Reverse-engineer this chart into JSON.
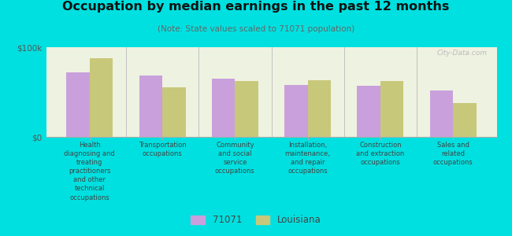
{
  "title": "Occupation by median earnings in the past 12 months",
  "subtitle": "(Note: State values scaled to 71071 population)",
  "categories": [
    "Health\ndiagnosing and\ntreating\npractitioners\nand other\ntechnical\noccupations",
    "Transportation\noccupations",
    "Community\nand social\nservice\noccupations",
    "Installation,\nmaintenance,\nand repair\noccupations",
    "Construction\nand extraction\noccupations",
    "Sales and\nrelated\noccupations"
  ],
  "values_71071": [
    72000,
    68000,
    65000,
    58000,
    57000,
    52000
  ],
  "values_louisiana": [
    88000,
    55000,
    62000,
    63000,
    62000,
    38000
  ],
  "color_71071": "#c9a0dc",
  "color_louisiana": "#c8c87a",
  "background_color": "#00e0e0",
  "plot_bg": "#eef2e0",
  "ylim": [
    0,
    100000
  ],
  "ytick_labels": [
    "$0",
    "$100k"
  ],
  "legend_label_71071": "71071",
  "legend_label_louisiana": "Louisiana",
  "watermark": "City-Data.com"
}
